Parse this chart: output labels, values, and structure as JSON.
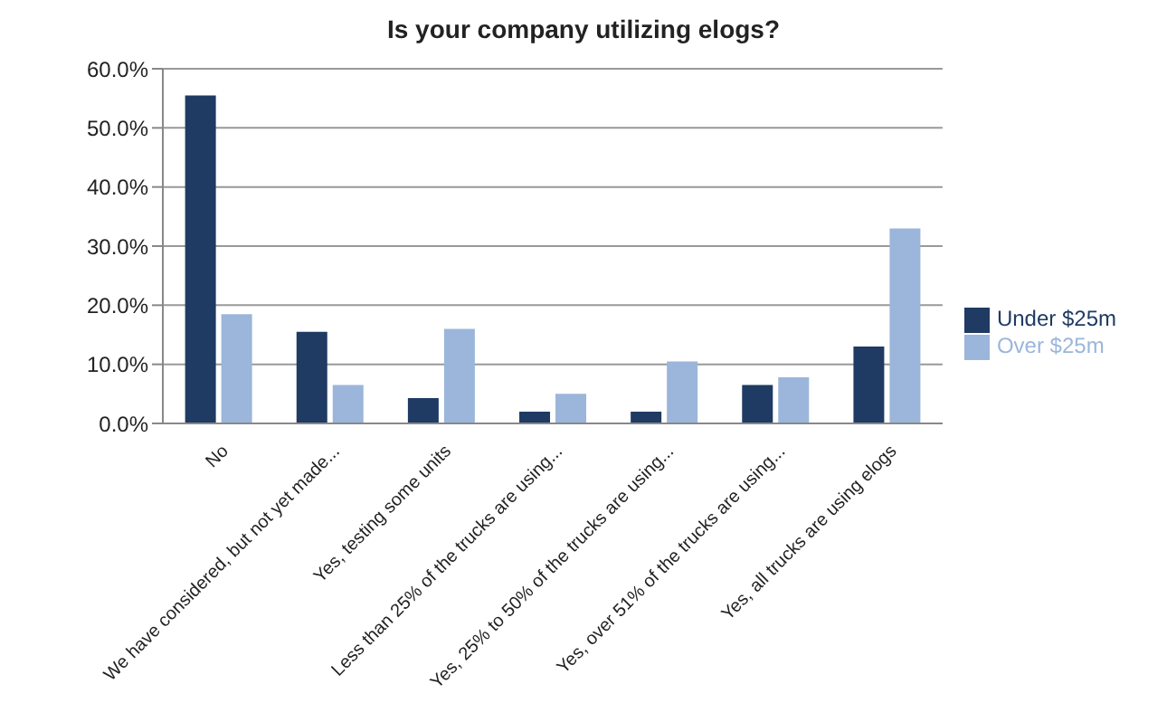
{
  "chart_data": {
    "type": "bar",
    "title": "Is your company utilizing elogs?",
    "categories": [
      "No",
      "We have considered, but not yet made...",
      "Yes, testing some units",
      "Less than 25% of the trucks are using...",
      "Yes, 25% to 50% of the trucks are using...",
      "Yes, over 51% of the trucks are using...",
      "Yes, all trucks are using elogs"
    ],
    "series": [
      {
        "name": "Under $25m",
        "color": "#1f3b63",
        "values": [
          55.5,
          15.5,
          4.3,
          2,
          2,
          6.5,
          13
        ]
      },
      {
        "name": "Over $25m",
        "color": "#9bb6da",
        "values": [
          18.5,
          6.5,
          16,
          5,
          10.5,
          7.8,
          33
        ]
      }
    ],
    "ylim": [
      0,
      60
    ],
    "yticks": [
      {
        "value": 0,
        "label": "0.0%"
      },
      {
        "value": 10,
        "label": "10.0%"
      },
      {
        "value": 20,
        "label": "20.0%"
      },
      {
        "value": 30,
        "label": "30.0%"
      },
      {
        "value": 40,
        "label": "40.0%"
      },
      {
        "value": 50,
        "label": "50.0%"
      },
      {
        "value": 60,
        "label": "60.0%"
      }
    ],
    "grid": "y",
    "legend": "right"
  }
}
